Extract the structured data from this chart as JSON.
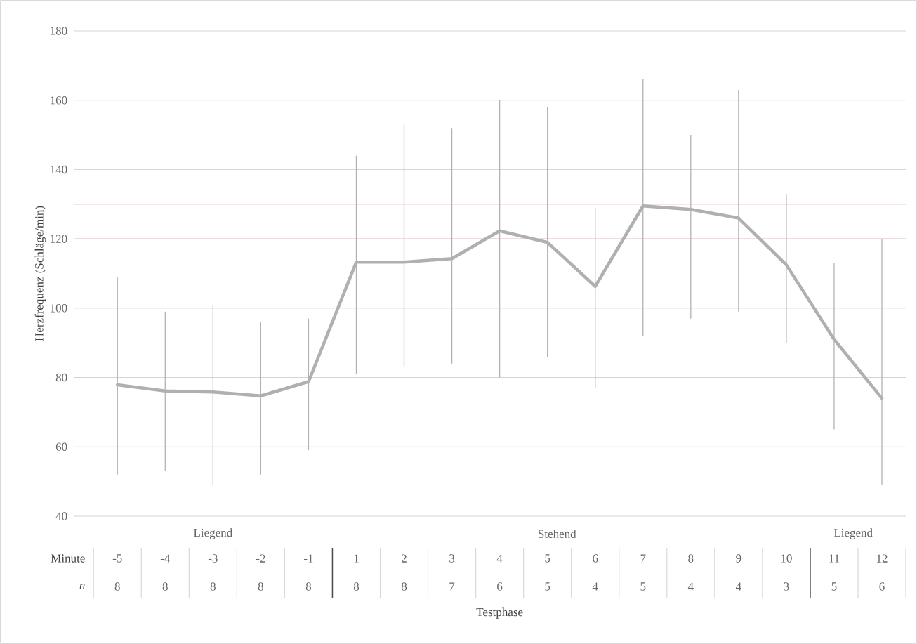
{
  "chart_data": {
    "type": "line",
    "xlabel": "Testphase",
    "ylabel": "Herzfrequenz (Schläge/min)",
    "categories": [
      "-5",
      "-4",
      "-3",
      "-2",
      "-1",
      "1",
      "2",
      "3",
      "4",
      "5",
      "6",
      "7",
      "8",
      "9",
      "10",
      "11",
      "12"
    ],
    "values": [
      77.9,
      76.1,
      75.8,
      74.7,
      78.8,
      113.3,
      113.3,
      114.3,
      122.3,
      119,
      106.3,
      129.5,
      128.5,
      126,
      112.5,
      91,
      74
    ],
    "errors": [
      [
        52,
        109
      ],
      [
        53,
        99
      ],
      [
        49,
        101
      ],
      [
        52,
        96
      ],
      [
        59,
        97
      ],
      [
        81,
        144
      ],
      [
        83,
        153
      ],
      [
        84,
        152
      ],
      [
        80,
        160
      ],
      [
        86,
        158
      ],
      [
        77,
        129
      ],
      [
        92,
        166
      ],
      [
        97,
        150
      ],
      [
        99,
        163
      ],
      [
        90,
        133
      ],
      [
        65,
        113
      ],
      [
        49,
        120
      ]
    ],
    "color": "#b0b0b0",
    "ylim": [
      40,
      180
    ],
    "yticks": [
      40,
      60,
      80,
      100,
      120,
      140,
      160,
      180
    ],
    "grid": "y",
    "marker": "none",
    "line_style": "solid",
    "ref_lines": [
      {
        "axis": "y",
        "value": 130,
        "label": null,
        "color": "#f2c9d0"
      },
      {
        "axis": "y",
        "value": 120,
        "label": null,
        "color": "#f2c9d0"
      }
    ],
    "annotations": [
      "Minute",
      "n",
      "8",
      "8",
      "8",
      "8",
      "8",
      "8",
      "8",
      "7",
      "6",
      "5",
      "4",
      "5",
      "4",
      "4",
      "3",
      "5",
      "6",
      "Liegend",
      "Stehend",
      "Liegend"
    ]
  }
}
